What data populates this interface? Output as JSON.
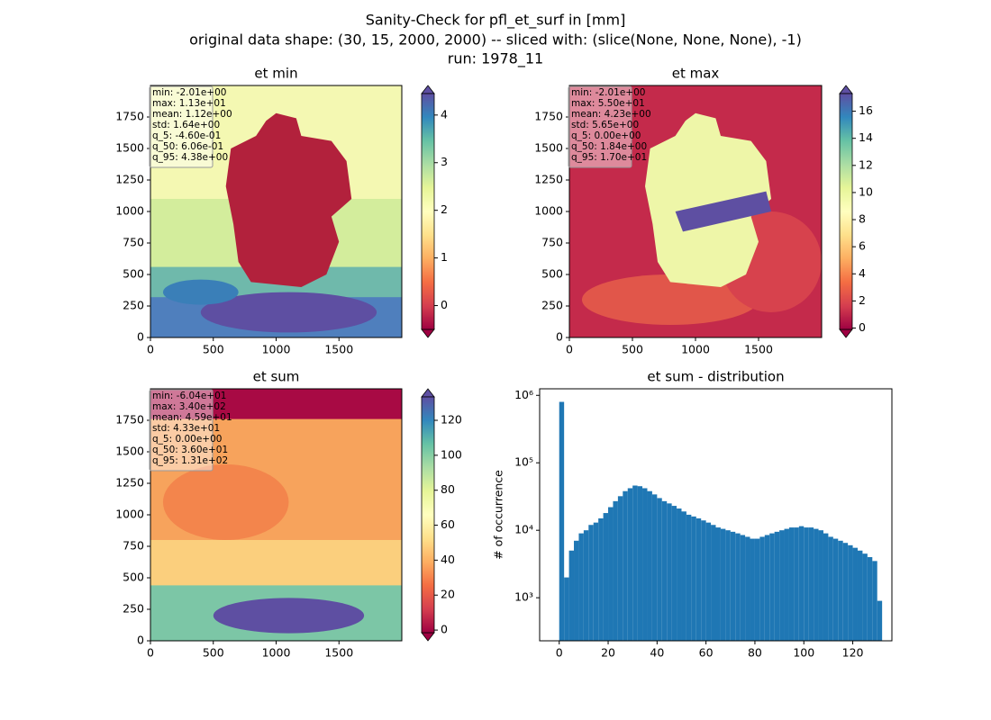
{
  "figure_title": [
    "Sanity-Check for pfl_et_surf in [mm]",
    "original data shape: (30, 15, 2000, 2000) -- sliced with: (slice(None, None, None), -1)",
    "run: 1978_11"
  ],
  "chart_data": [
    {
      "type": "heatmap",
      "title": "et min",
      "xlim": [
        0,
        2000
      ],
      "ylim": [
        0,
        2000
      ],
      "xticks": [
        0,
        500,
        1000,
        1500
      ],
      "yticks": [
        0,
        250,
        500,
        750,
        1000,
        1250,
        1500,
        1750
      ],
      "clim": [
        -0.5,
        4.45
      ],
      "cticks": [
        0,
        1,
        2,
        3,
        4
      ],
      "colormap": [
        "#9e0142",
        "#d53e4f",
        "#f46d43",
        "#fdae61",
        "#fee08b",
        "#ffffbf",
        "#e6f598",
        "#abdda4",
        "#66c2a5",
        "#3288bd",
        "#5e4fa2"
      ],
      "stats": [
        "min: -2.01e+00",
        "max: 1.13e+01",
        "mean: 1.12e+00",
        "std: 1.64e+00",
        "q_5: -4.60e-01",
        "q_50: 6.06e-01",
        "q_95: 4.38e+00"
      ]
    },
    {
      "type": "heatmap",
      "title": "et max",
      "xlim": [
        0,
        2000
      ],
      "ylim": [
        0,
        2000
      ],
      "xticks": [
        0,
        500,
        1000,
        1500
      ],
      "yticks": [
        0,
        250,
        500,
        750,
        1000,
        1250,
        1500,
        1750
      ],
      "clim": [
        -0.1,
        17.3
      ],
      "cticks": [
        0,
        2,
        4,
        6,
        8,
        10,
        12,
        14,
        16
      ],
      "colormap": [
        "#9e0142",
        "#d53e4f",
        "#f46d43",
        "#fdae61",
        "#fee08b",
        "#ffffbf",
        "#e6f598",
        "#abdda4",
        "#66c2a5",
        "#3288bd",
        "#5e4fa2"
      ],
      "stats": [
        "min: -2.01e+00",
        "max: 5.50e+01",
        "mean: 4.23e+00",
        "std: 5.65e+00",
        "q_5: 0.00e+00",
        "q_50: 1.84e+00",
        "q_95: 1.70e+01"
      ]
    },
    {
      "type": "heatmap",
      "title": "et sum",
      "xlim": [
        0,
        2000
      ],
      "ylim": [
        0,
        2000
      ],
      "xticks": [
        0,
        500,
        1000,
        1500
      ],
      "yticks": [
        0,
        250,
        500,
        750,
        1000,
        1250,
        1500,
        1750
      ],
      "clim": [
        -1.5,
        133.4
      ],
      "cticks": [
        0,
        20,
        40,
        60,
        80,
        100,
        120
      ],
      "colormap": [
        "#9e0142",
        "#d53e4f",
        "#f46d43",
        "#fdae61",
        "#fee08b",
        "#ffffbf",
        "#e6f598",
        "#abdda4",
        "#66c2a5",
        "#3288bd",
        "#5e4fa2"
      ],
      "stats": [
        "min: -6.04e+01",
        "max: 3.40e+02",
        "mean: 4.59e+01",
        "std: 4.33e+01",
        "q_5: 0.00e+00",
        "q_50: 3.60e+01",
        "q_95: 1.31e+02"
      ]
    },
    {
      "type": "histogram",
      "title": "et sum - distribution",
      "ylabel": "# of occurrence",
      "color": "#1f77b4",
      "log_y": true,
      "xlim": [
        -8,
        136
      ],
      "ylim": [
        230,
        1250000
      ],
      "xticks": [
        0,
        20,
        40,
        60,
        80,
        100,
        120
      ],
      "yticks": [
        {
          "value": 1000,
          "label": "10³"
        },
        {
          "value": 10000,
          "label": "10⁴"
        },
        {
          "value": 100000,
          "label": "10⁵"
        },
        {
          "value": 1000000,
          "label": "10⁶"
        }
      ],
      "bins": [
        0,
        2,
        4,
        6,
        8,
        10,
        12,
        14,
        16,
        18,
        20,
        22,
        24,
        26,
        28,
        30,
        32,
        34,
        36,
        38,
        40,
        42,
        44,
        46,
        48,
        50,
        52,
        54,
        56,
        58,
        60,
        62,
        64,
        66,
        68,
        70,
        72,
        74,
        76,
        78,
        80,
        82,
        84,
        86,
        88,
        90,
        92,
        94,
        96,
        98,
        100,
        102,
        104,
        106,
        108,
        110,
        112,
        114,
        116,
        118,
        120,
        122,
        124,
        126,
        128,
        130,
        132
      ],
      "counts": [
        800000,
        2000,
        5000,
        7000,
        9000,
        10000,
        12000,
        13000,
        15000,
        18000,
        22000,
        27000,
        32000,
        38000,
        42000,
        46000,
        45000,
        42000,
        38000,
        34000,
        30000,
        27000,
        25000,
        23000,
        21000,
        19000,
        17000,
        16000,
        15000,
        14000,
        13000,
        12000,
        11000,
        10500,
        10000,
        9500,
        9000,
        8500,
        8000,
        7500,
        7500,
        8000,
        8500,
        9000,
        9500,
        10000,
        10500,
        11000,
        11000,
        11500,
        11000,
        11000,
        10500,
        10000,
        9000,
        8000,
        7500,
        7000,
        6500,
        6000,
        5500,
        5000,
        4500,
        4000,
        3500,
        900
      ]
    }
  ]
}
